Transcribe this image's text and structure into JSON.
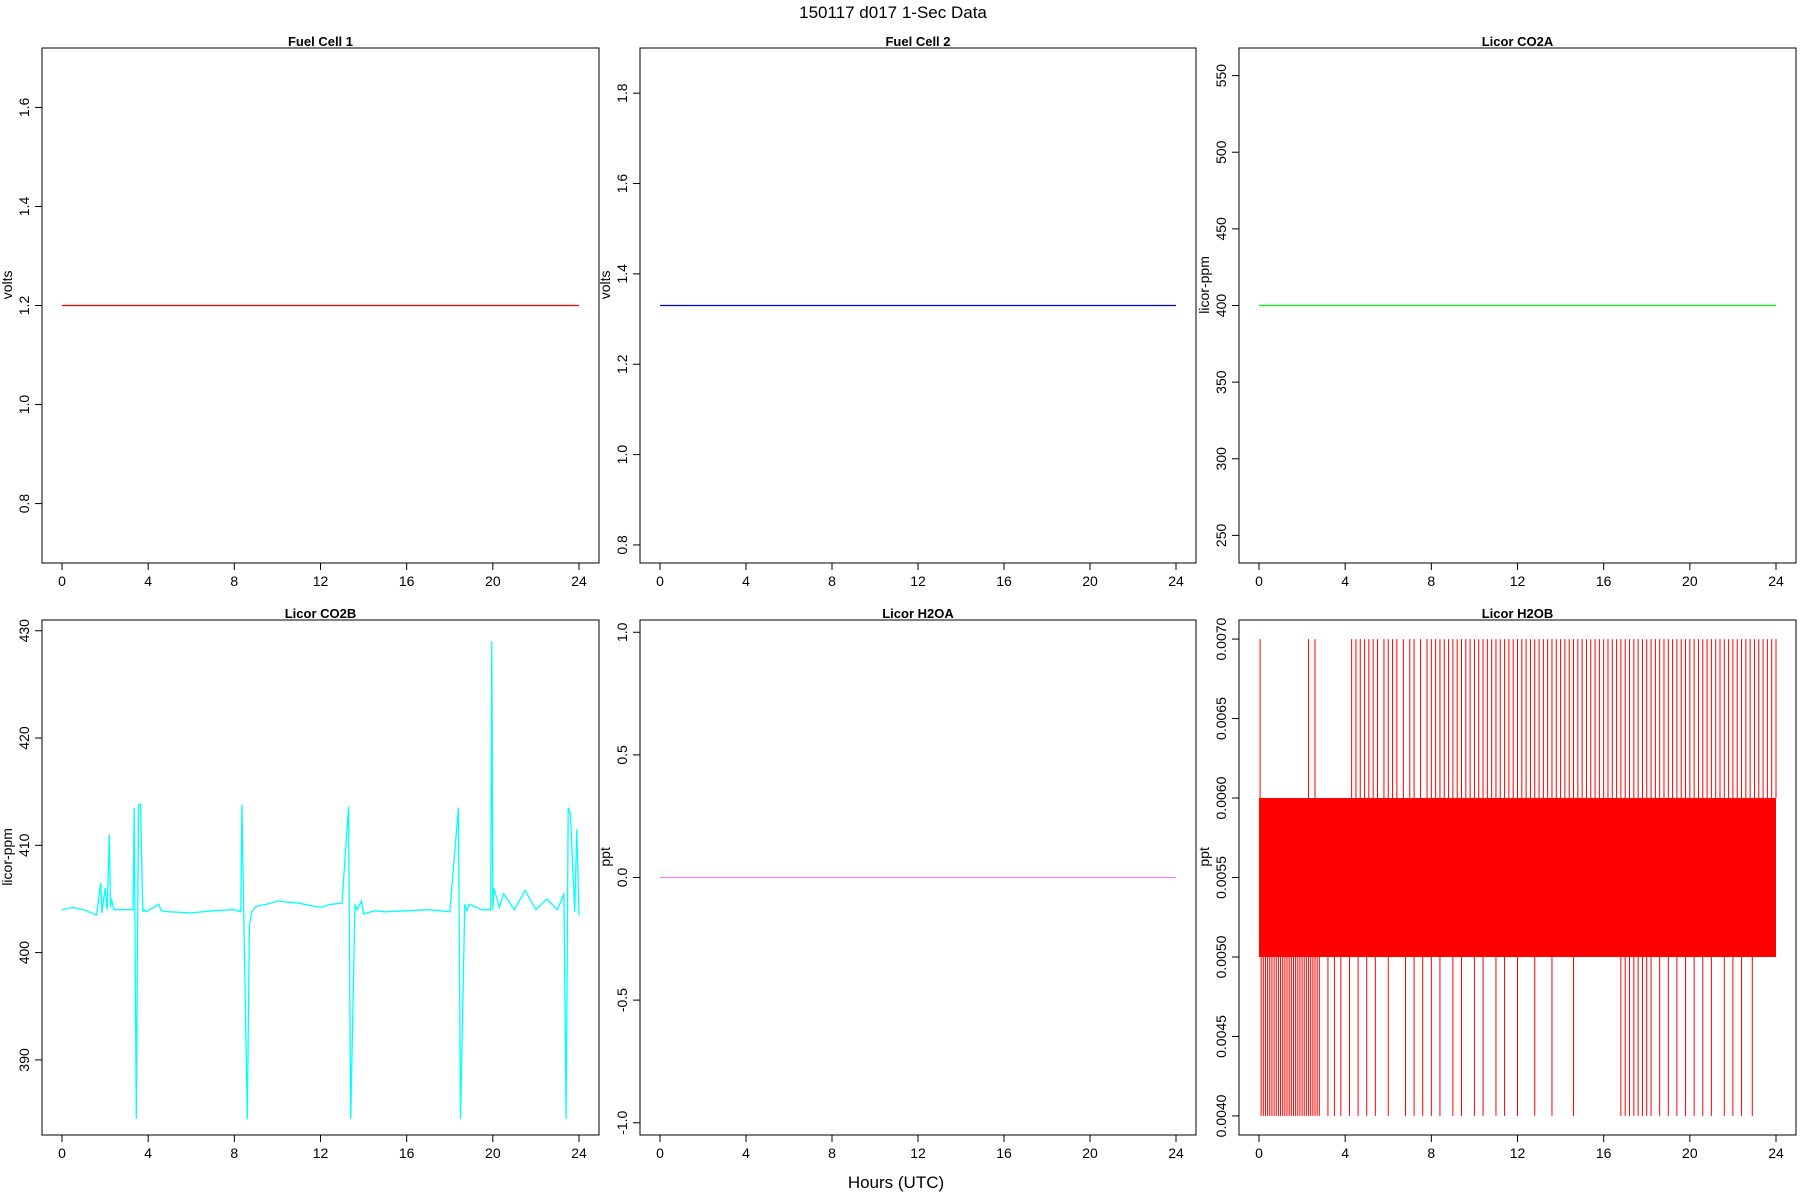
{
  "figure": {
    "title": "150117   d017   1-Sec Data",
    "xlabel": "Hours (UTC)"
  },
  "chart_data": [
    {
      "type": "line",
      "title": "Fuel Cell 1",
      "ylabel": "volts",
      "xlim": [
        0,
        24
      ],
      "ylim": [
        0.68,
        1.72
      ],
      "xticks": [
        0,
        4,
        8,
        12,
        16,
        20,
        24
      ],
      "yticks": [
        0.8,
        1.0,
        1.2,
        1.4,
        1.6
      ],
      "ytick_labels": [
        "0.8",
        "1.0",
        "1.2",
        "1.4",
        "1.6"
      ],
      "color": "#ff0000",
      "series": [
        {
          "x": [
            0,
            24
          ],
          "y": [
            1.2,
            1.2
          ]
        }
      ]
    },
    {
      "type": "line",
      "title": "Fuel Cell 2",
      "ylabel": "volts",
      "xlim": [
        0,
        24
      ],
      "ylim": [
        0.76,
        1.9
      ],
      "xticks": [
        0,
        4,
        8,
        12,
        16,
        20,
        24
      ],
      "yticks": [
        0.8,
        1.0,
        1.2,
        1.4,
        1.6,
        1.8
      ],
      "ytick_labels": [
        "0.8",
        "1.0",
        "1.2",
        "1.4",
        "1.6",
        "1.8"
      ],
      "color": "#0000ff",
      "series": [
        {
          "x": [
            0,
            24
          ],
          "y": [
            1.33,
            1.33
          ]
        }
      ]
    },
    {
      "type": "line",
      "title": "Licor CO2A",
      "ylabel": "licor-ppm",
      "xlim": [
        0,
        24
      ],
      "ylim": [
        232,
        568
      ],
      "xticks": [
        0,
        4,
        8,
        12,
        16,
        20,
        24
      ],
      "yticks": [
        250,
        300,
        350,
        400,
        450,
        500,
        550
      ],
      "ytick_labels": [
        "250",
        "300",
        "350",
        "400",
        "450",
        "500",
        "550"
      ],
      "color": "#00ff00",
      "series": [
        {
          "x": [
            0,
            24
          ],
          "y": [
            400,
            400
          ]
        }
      ]
    },
    {
      "type": "line",
      "title": "Licor CO2B",
      "ylabel": "licor-ppm",
      "xlim": [
        0,
        24
      ],
      "ylim": [
        383,
        431
      ],
      "xticks": [
        0,
        4,
        8,
        12,
        16,
        20,
        24
      ],
      "yticks": [
        390,
        400,
        410,
        420,
        430
      ],
      "ytick_labels": [
        "390",
        "400",
        "410",
        "420",
        "430"
      ],
      "color": "#00ffff",
      "series": [
        {
          "x": [
            0.0,
            0.5,
            1.0,
            1.6,
            1.8,
            1.85,
            2.0,
            2.1,
            2.2,
            2.25,
            2.3,
            2.4,
            2.7,
            3.0,
            3.3,
            3.35,
            3.45,
            3.55,
            3.65,
            3.75,
            3.8,
            3.9,
            4.5,
            4.6,
            5.0,
            6.0,
            7.0,
            8.0,
            8.3,
            8.35,
            8.6,
            8.7,
            8.8,
            9.0,
            9.5,
            10.0,
            11.0,
            12.0,
            12.5,
            13.0,
            13.3,
            13.4,
            13.6,
            13.7,
            13.9,
            14.0,
            14.5,
            15.0,
            16.0,
            17.0,
            18.0,
            18.4,
            18.5,
            18.7,
            18.8,
            18.9,
            19.5,
            19.9,
            19.95,
            20.0,
            20.05,
            20.3,
            20.5,
            21.0,
            21.5,
            22.0,
            22.5,
            23.0,
            23.3,
            23.4,
            23.5,
            23.6,
            23.8,
            23.9,
            24.0
          ],
          "y": [
            404.0,
            404.2,
            404.0,
            403.5,
            406.5,
            403.7,
            406.0,
            404.0,
            411.0,
            404.2,
            405.0,
            404.0,
            404.0,
            404.0,
            404.0,
            413.5,
            384.5,
            413.8,
            413.8,
            403.8,
            404.0,
            403.8,
            404.5,
            403.9,
            403.8,
            403.7,
            403.9,
            404.0,
            403.8,
            413.8,
            384.5,
            402.5,
            403.8,
            404.3,
            404.5,
            404.8,
            404.6,
            404.2,
            404.5,
            404.6,
            413.6,
            384.5,
            404.5,
            404.0,
            404.8,
            403.6,
            403.9,
            403.8,
            403.9,
            404.0,
            403.8,
            413.5,
            384.5,
            404.5,
            403.9,
            404.5,
            404.0,
            404.0,
            429.0,
            404.0,
            406.0,
            404.2,
            405.5,
            404.0,
            405.8,
            404.0,
            405.0,
            404.0,
            405.5,
            384.5,
            413.5,
            413.0,
            403.8,
            411.5,
            403.5
          ]
        }
      ]
    },
    {
      "type": "line",
      "title": "Licor H2OA",
      "ylabel": "ppt",
      "xlim": [
        0,
        24
      ],
      "ylim": [
        -1.05,
        1.05
      ],
      "xticks": [
        0,
        4,
        8,
        12,
        16,
        20,
        24
      ],
      "yticks": [
        -1.0,
        -0.5,
        0.0,
        0.5,
        1.0
      ],
      "ytick_labels": [
        "-1.0",
        "-0.5",
        "0.0",
        "0.5",
        "1.0"
      ],
      "color": "#ee82ee",
      "series": [
        {
          "x": [
            0,
            24
          ],
          "y": [
            0.0,
            0.0
          ]
        }
      ]
    },
    {
      "type": "line",
      "title": "Licor H2OB",
      "ylabel": "ppt",
      "xlim": [
        0,
        24
      ],
      "ylim": [
        0.00388,
        0.00712
      ],
      "xticks": [
        0,
        4,
        8,
        12,
        16,
        20,
        24
      ],
      "yticks": [
        0.004,
        0.0045,
        0.005,
        0.0055,
        0.006,
        0.0065,
        0.007
      ],
      "ytick_labels": [
        "0.0040",
        "0.0045",
        "0.0050",
        "0.0055",
        "0.0060",
        "0.0065",
        "0.0070"
      ],
      "color": "#ff0000",
      "band": {
        "x": [
          0,
          24
        ],
        "low": 0.005,
        "high": 0.006
      },
      "spikes_high": {
        "value": 0.007,
        "x": [
          0.05,
          2.3,
          2.6,
          4.3,
          4.5,
          4.7,
          4.9,
          5.1,
          5.3,
          5.5,
          5.8,
          6.0,
          6.2,
          6.4,
          6.7,
          7.0,
          7.2,
          7.5,
          7.8,
          8.0,
          8.2,
          8.4,
          8.6,
          8.8,
          9.0,
          9.2,
          9.4,
          9.6,
          9.8,
          10.0,
          10.2,
          10.4,
          10.6,
          10.8,
          11.0,
          11.2,
          11.4,
          11.6,
          11.8,
          12.0,
          12.2,
          12.4,
          12.6,
          12.8,
          13.0,
          13.2,
          13.4,
          13.6,
          13.8,
          14.0,
          14.2,
          14.4,
          14.6,
          14.8,
          15.0,
          15.2,
          15.4,
          15.6,
          15.8,
          16.0,
          16.2,
          16.4,
          16.6,
          16.8,
          17.0,
          17.2,
          17.4,
          17.6,
          17.8,
          18.0,
          18.2,
          18.4,
          18.6,
          18.8,
          19.0,
          19.2,
          19.4,
          19.6,
          19.8,
          20.0,
          20.2,
          20.4,
          20.6,
          20.8,
          21.0,
          21.2,
          21.4,
          21.6,
          21.8,
          22.0,
          22.2,
          22.4,
          22.6,
          22.8,
          23.0,
          23.2,
          23.4,
          23.6,
          23.8,
          24.0
        ]
      },
      "spikes_low": {
        "value": 0.004,
        "x": [
          0.1,
          0.2,
          0.3,
          0.4,
          0.5,
          0.6,
          0.7,
          0.8,
          0.9,
          1.0,
          1.1,
          1.2,
          1.3,
          1.4,
          1.5,
          1.6,
          1.7,
          1.8,
          1.9,
          2.0,
          2.1,
          2.2,
          2.3,
          2.4,
          2.5,
          2.6,
          2.7,
          2.8,
          3.2,
          3.5,
          3.8,
          4.2,
          4.6,
          5.0,
          5.4,
          6.0,
          6.8,
          7.2,
          7.6,
          8.0,
          8.4,
          9.0,
          9.4,
          10.0,
          10.4,
          11.0,
          11.4,
          12.0,
          12.8,
          13.6,
          14.6,
          16.8,
          17.0,
          17.2,
          17.4,
          17.6,
          17.8,
          18.0,
          18.2,
          18.6,
          19.0,
          19.4,
          19.8,
          20.2,
          20.6,
          21.0,
          21.6,
          22.0,
          22.4,
          22.9
        ]
      }
    }
  ]
}
